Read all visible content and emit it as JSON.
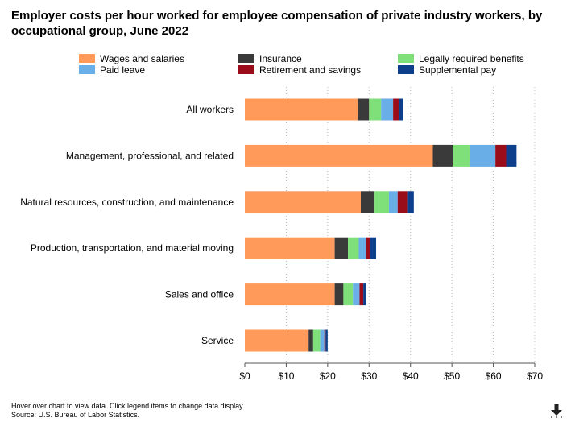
{
  "chart_data": {
    "type": "bar",
    "orientation": "horizontal",
    "stacked": true,
    "title": "Employer costs per hour worked for employee compensation of private industry workers, by occupational group, June 2022",
    "xlabel": "",
    "ylabel": "",
    "xlim": [
      0,
      70
    ],
    "x_ticks": [
      "$0",
      "$10",
      "$20",
      "$30",
      "$40",
      "$50",
      "$60",
      "$70"
    ],
    "grid": "vertical dotted",
    "legend_position": "top",
    "categories": [
      "All workers",
      "Management, professional, and related",
      "Natural resources, construction, and maintenance",
      "Production, transportation, and material moving",
      "Sales and office",
      "Service"
    ],
    "series": [
      {
        "name": "Wages and salaries",
        "color": "#ff9a5a",
        "values": [
          27.3,
          45.4,
          28.0,
          21.7,
          21.7,
          15.4
        ]
      },
      {
        "name": "Insurance",
        "color": "#3a3a3a",
        "values": [
          2.7,
          4.8,
          3.2,
          3.2,
          2.1,
          1.1
        ]
      },
      {
        "name": "Legally required benefits",
        "color": "#7fe07a",
        "values": [
          2.9,
          4.2,
          3.6,
          2.6,
          2.3,
          1.7
        ]
      },
      {
        "name": "Paid leave",
        "color": "#6aaee8",
        "values": [
          2.9,
          6.1,
          2.1,
          1.8,
          1.6,
          1.0
        ]
      },
      {
        "name": "Retirement and savings",
        "color": "#990d1a",
        "values": [
          1.4,
          2.6,
          2.3,
          1.0,
          0.9,
          0.3
        ]
      },
      {
        "name": "Supplemental pay",
        "color": "#0d3f8c",
        "values": [
          1.1,
          2.5,
          1.6,
          1.4,
          0.6,
          0.5
        ]
      }
    ]
  },
  "footer": {
    "line1": "Hover over chart to view data. Click legend items to change data display.",
    "line2": "Source: U.S. Bureau of Labor Statistics."
  },
  "download": {
    "icon": "download-arrow-icon"
  }
}
